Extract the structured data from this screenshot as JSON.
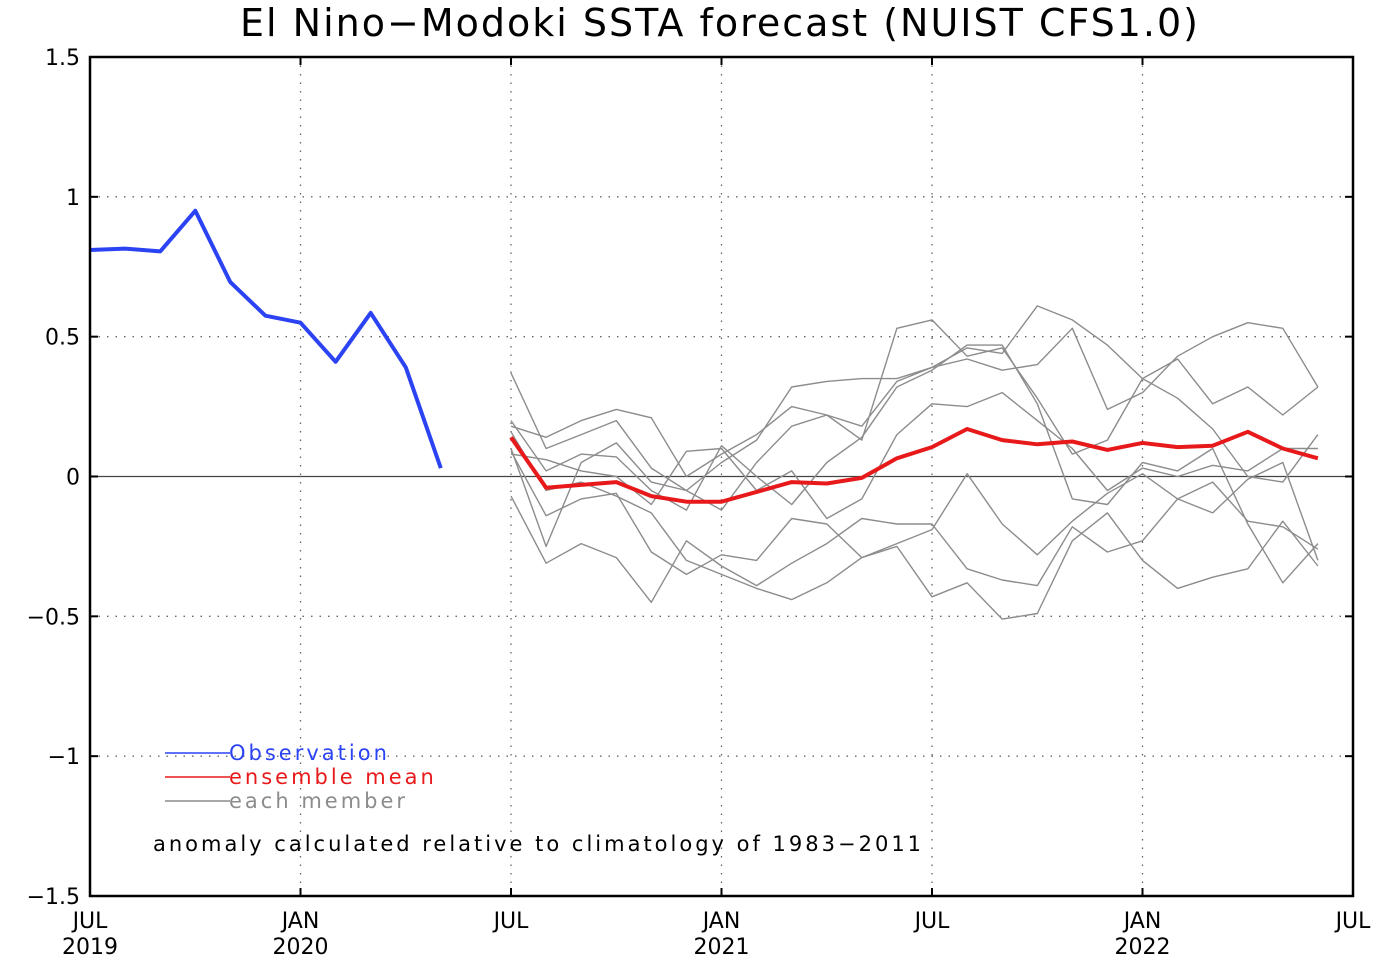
{
  "chart_data": {
    "type": "line",
    "title": "El Nino−Modoki SSTA forecast (NUIST CFS1.0)",
    "xlabel": "",
    "ylabel": "",
    "xlim": [
      0,
      36
    ],
    "ylim": [
      -1.5,
      1.5
    ],
    "grid": true,
    "y_ticks": [
      {
        "value": 1.5,
        "label": "1.5"
      },
      {
        "value": 1,
        "label": "1"
      },
      {
        "value": 0.5,
        "label": "0.5"
      },
      {
        "value": 0,
        "label": "0"
      },
      {
        "value": -0.5,
        "label": "−0.5"
      },
      {
        "value": -1,
        "label": "−1"
      },
      {
        "value": -1.5,
        "label": "−1.5"
      }
    ],
    "x_ticks": [
      {
        "month": 0,
        "label": "JUL",
        "year": "2019"
      },
      {
        "month": 6,
        "label": "JAN",
        "year": "2020"
      },
      {
        "month": 12,
        "label": "JUL",
        "year": ""
      },
      {
        "month": 18,
        "label": "JAN",
        "year": "2021"
      },
      {
        "month": 24,
        "label": "JUL",
        "year": ""
      },
      {
        "month": 30,
        "label": "JAN",
        "year": "2022"
      },
      {
        "month": 36,
        "label": "JUL",
        "year": ""
      }
    ],
    "observation": {
      "name": "Observation",
      "color": "#2b43f3",
      "x": [
        0,
        1,
        2,
        3,
        4,
        5,
        6,
        7,
        8,
        9,
        10
      ],
      "values": [
        0.81,
        0.815,
        0.805,
        0.95,
        0.695,
        0.575,
        0.55,
        0.41,
        0.585,
        0.39,
        0.03
      ]
    },
    "ensemble_mean": {
      "name": "ensemble mean",
      "color": "#e8191a",
      "x_start": 12,
      "values": [
        0.14,
        -0.04,
        -0.03,
        -0.02,
        -0.07,
        -0.09,
        -0.09,
        -0.055,
        -0.02,
        -0.025,
        -0.005,
        0.065,
        0.105,
        0.17,
        0.13,
        0.115,
        0.125,
        0.095,
        0.12,
        0.105,
        0.11,
        0.16,
        0.1,
        0.065
      ]
    },
    "members": {
      "name": "each member",
      "color": "#8c8c8c",
      "x_start": 12,
      "series": [
        [
          0.37,
          0.1,
          0.15,
          0.2,
          0.03,
          -0.05,
          -0.12,
          0.05,
          0.18,
          0.22,
          0.13,
          0.53,
          0.56,
          0.43,
          0.46,
          0.28,
          0.08,
          0.13,
          0.35,
          0.42,
          0.26,
          0.32,
          0.22,
          0.32
        ],
        [
          0.2,
          0.02,
          0.08,
          0.07,
          -0.05,
          -0.12,
          0.11,
          0.0,
          -0.1,
          0.05,
          0.14,
          0.32,
          0.38,
          0.47,
          0.47,
          0.26,
          -0.08,
          -0.1,
          0.05,
          0.02,
          0.1,
          -0.17,
          -0.38,
          -0.24
        ],
        [
          0.18,
          0.14,
          0.2,
          0.24,
          0.21,
          0.0,
          0.08,
          0.15,
          0.25,
          0.22,
          0.18,
          0.34,
          0.39,
          0.46,
          0.44,
          0.61,
          0.56,
          0.47,
          0.35,
          0.28,
          0.17,
          0.0,
          -0.02,
          0.15
        ],
        [
          0.1,
          -0.25,
          0.05,
          0.12,
          -0.02,
          -0.05,
          0.05,
          0.13,
          0.32,
          0.34,
          0.35,
          0.35,
          0.39,
          0.42,
          0.38,
          0.4,
          0.53,
          0.24,
          0.3,
          0.43,
          0.5,
          0.55,
          0.53,
          0.32
        ],
        [
          0.08,
          0.06,
          0.02,
          0.0,
          -0.1,
          0.09,
          0.1,
          -0.05,
          0.02,
          -0.15,
          -0.08,
          0.15,
          0.26,
          0.25,
          0.3,
          0.2,
          0.1,
          -0.05,
          0.03,
          0.0,
          0.04,
          0.02,
          0.1,
          0.1
        ],
        [
          0.09,
          -0.14,
          -0.08,
          -0.06,
          -0.27,
          -0.35,
          -0.28,
          -0.3,
          -0.15,
          -0.17,
          -0.29,
          -0.24,
          -0.19,
          0.01,
          -0.17,
          -0.28,
          -0.16,
          -0.06,
          0.01,
          -0.08,
          -0.13,
          -0.01,
          0.05,
          -0.3
        ],
        [
          0.16,
          -0.05,
          -0.02,
          -0.07,
          -0.13,
          -0.3,
          -0.35,
          -0.4,
          -0.44,
          -0.38,
          -0.29,
          -0.25,
          -0.43,
          -0.38,
          -0.51,
          -0.49,
          -0.23,
          -0.13,
          -0.3,
          -0.4,
          -0.36,
          -0.33,
          -0.16,
          -0.32
        ],
        [
          -0.07,
          -0.31,
          -0.24,
          -0.29,
          -0.45,
          -0.23,
          -0.32,
          -0.39,
          -0.31,
          -0.24,
          -0.15,
          -0.17,
          -0.17,
          -0.33,
          -0.37,
          -0.39,
          -0.18,
          -0.27,
          -0.23,
          -0.08,
          -0.02,
          -0.16,
          -0.18,
          -0.26
        ]
      ]
    },
    "zero_line": {
      "color": "#444444",
      "value": 0
    },
    "legend": {
      "placement": "bottom-left",
      "items": [
        {
          "label": "Observation",
          "color": "#2b43f3"
        },
        {
          "label": "ensemble mean",
          "color": "#e8191a"
        },
        {
          "label": "each member",
          "color": "#8c8c8c"
        }
      ]
    },
    "annotation": "anomaly calculated relative to climatology of 1983−2011"
  }
}
